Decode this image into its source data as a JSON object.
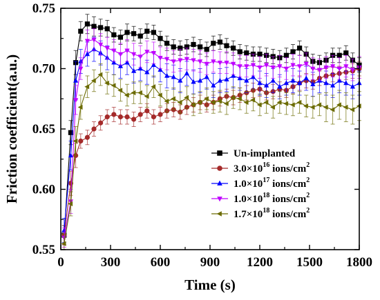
{
  "chart_data": {
    "type": "line",
    "xlabel": "Time (s)",
    "ylabel": "Friction coefficient(a.u.)",
    "xlim": [
      0,
      1800
    ],
    "ylim": [
      0.55,
      0.75
    ],
    "xticks": [
      0,
      300,
      600,
      900,
      1200,
      1500,
      1800
    ],
    "yticks": [
      0.55,
      0.6,
      0.65,
      0.7,
      0.75
    ],
    "xtick_labels": [
      "0",
      "300",
      "600",
      "900",
      "1200",
      "1500",
      "1800"
    ],
    "ytick_labels": [
      "0.55",
      "0.60",
      "0.65",
      "0.70",
      "0.75"
    ],
    "legend_position": "lower-right",
    "error_bars": true,
    "x": [
      20,
      60,
      90,
      120,
      160,
      200,
      240,
      280,
      320,
      360,
      400,
      440,
      480,
      520,
      560,
      600,
      640,
      680,
      720,
      760,
      800,
      840,
      880,
      920,
      960,
      1000,
      1040,
      1080,
      1120,
      1160,
      1200,
      1240,
      1280,
      1320,
      1360,
      1400,
      1440,
      1480,
      1520,
      1560,
      1600,
      1640,
      1680,
      1720,
      1760,
      1800
    ],
    "series": [
      {
        "name": "Un-implanted",
        "name_parts": {
          "base": "Un-implanted",
          "exp": "",
          "unit": "",
          "unit_exp": ""
        },
        "color": "#000000",
        "marker": "square",
        "values": [
          0.562,
          0.647,
          0.705,
          0.731,
          0.737,
          0.735,
          0.734,
          0.733,
          0.728,
          0.726,
          0.73,
          0.729,
          0.727,
          0.731,
          0.73,
          0.725,
          0.721,
          0.718,
          0.717,
          0.718,
          0.72,
          0.718,
          0.716,
          0.721,
          0.722,
          0.719,
          0.717,
          0.714,
          0.713,
          0.712,
          0.712,
          0.711,
          0.71,
          0.709,
          0.711,
          0.714,
          0.717,
          0.712,
          0.706,
          0.705,
          0.707,
          0.711,
          0.711,
          0.713,
          0.707,
          0.703
        ],
        "errors": [
          0.008,
          0.01,
          0.01,
          0.008,
          0.008,
          0.008,
          0.007,
          0.007,
          0.006,
          0.006,
          0.007,
          0.006,
          0.006,
          0.006,
          0.006,
          0.006,
          0.006,
          0.006,
          0.006,
          0.006,
          0.006,
          0.006,
          0.006,
          0.006,
          0.006,
          0.006,
          0.006,
          0.006,
          0.006,
          0.006,
          0.006,
          0.006,
          0.006,
          0.006,
          0.006,
          0.006,
          0.006,
          0.006,
          0.006,
          0.006,
          0.006,
          0.006,
          0.006,
          0.006,
          0.006,
          0.006
        ]
      },
      {
        "name": "3.0×1016 ions/cm2",
        "name_parts": {
          "base": "3.0×10",
          "exp": "16",
          "unit": " ions/cm",
          "unit_exp": "2"
        },
        "color": "#a52a2a",
        "marker": "circle",
        "values": [
          0.562,
          0.605,
          0.628,
          0.64,
          0.643,
          0.65,
          0.655,
          0.66,
          0.662,
          0.66,
          0.66,
          0.658,
          0.662,
          0.665,
          0.66,
          0.662,
          0.665,
          0.666,
          0.664,
          0.668,
          0.67,
          0.672,
          0.67,
          0.672,
          0.675,
          0.677,
          0.676,
          0.678,
          0.68,
          0.682,
          0.683,
          0.68,
          0.681,
          0.683,
          0.682,
          0.685,
          0.688,
          0.69,
          0.689,
          0.692,
          0.694,
          0.695,
          0.696,
          0.697,
          0.698,
          0.7
        ],
        "errors": [
          0.008,
          0.01,
          0.01,
          0.006,
          0.006,
          0.006,
          0.006,
          0.006,
          0.006,
          0.006,
          0.006,
          0.006,
          0.006,
          0.006,
          0.006,
          0.006,
          0.006,
          0.006,
          0.006,
          0.006,
          0.006,
          0.006,
          0.006,
          0.006,
          0.006,
          0.006,
          0.006,
          0.006,
          0.006,
          0.006,
          0.006,
          0.006,
          0.006,
          0.006,
          0.006,
          0.006,
          0.006,
          0.006,
          0.006,
          0.006,
          0.006,
          0.006,
          0.006,
          0.006,
          0.006,
          0.006
        ]
      },
      {
        "name": "1.0×1017 ions/cm2",
        "name_parts": {
          "base": "1.0×10",
          "exp": "17",
          "unit": " ions/cm",
          "unit_exp": "2"
        },
        "color": "#0000ff",
        "marker": "triangle-up",
        "values": [
          0.566,
          0.628,
          0.69,
          0.706,
          0.712,
          0.716,
          0.713,
          0.709,
          0.705,
          0.702,
          0.705,
          0.698,
          0.7,
          0.697,
          0.703,
          0.699,
          0.694,
          0.693,
          0.69,
          0.696,
          0.689,
          0.69,
          0.693,
          0.686,
          0.69,
          0.691,
          0.694,
          0.692,
          0.69,
          0.693,
          0.688,
          0.686,
          0.69,
          0.685,
          0.688,
          0.69,
          0.688,
          0.692,
          0.687,
          0.69,
          0.688,
          0.686,
          0.69,
          0.688,
          0.685,
          0.688
        ],
        "errors": [
          0.01,
          0.012,
          0.016,
          0.01,
          0.01,
          0.01,
          0.01,
          0.01,
          0.01,
          0.01,
          0.01,
          0.01,
          0.01,
          0.01,
          0.01,
          0.01,
          0.01,
          0.01,
          0.01,
          0.01,
          0.01,
          0.01,
          0.01,
          0.01,
          0.01,
          0.01,
          0.01,
          0.01,
          0.01,
          0.01,
          0.01,
          0.01,
          0.01,
          0.01,
          0.01,
          0.01,
          0.01,
          0.01,
          0.01,
          0.01,
          0.01,
          0.01,
          0.01,
          0.01,
          0.01,
          0.01
        ]
      },
      {
        "name": "1.0×1018 ions/cm2",
        "name_parts": {
          "base": "1.0×10",
          "exp": "18",
          "unit": " ions/cm",
          "unit_exp": "2"
        },
        "color": "#c000ff",
        "marker": "triangle-down",
        "values": [
          0.56,
          0.59,
          0.674,
          0.7,
          0.723,
          0.724,
          0.72,
          0.717,
          0.715,
          0.712,
          0.715,
          0.712,
          0.71,
          0.714,
          0.713,
          0.709,
          0.708,
          0.706,
          0.707,
          0.708,
          0.707,
          0.706,
          0.704,
          0.706,
          0.705,
          0.705,
          0.704,
          0.702,
          0.702,
          0.703,
          0.701,
          0.703,
          0.701,
          0.702,
          0.7,
          0.703,
          0.702,
          0.704,
          0.7,
          0.699,
          0.701,
          0.702,
          0.7,
          0.702,
          0.699,
          0.701
        ],
        "errors": [
          0.008,
          0.01,
          0.012,
          0.009,
          0.009,
          0.009,
          0.009,
          0.009,
          0.009,
          0.009,
          0.009,
          0.009,
          0.009,
          0.009,
          0.009,
          0.009,
          0.009,
          0.009,
          0.009,
          0.009,
          0.009,
          0.009,
          0.009,
          0.009,
          0.009,
          0.009,
          0.009,
          0.009,
          0.009,
          0.009,
          0.009,
          0.009,
          0.009,
          0.009,
          0.009,
          0.009,
          0.009,
          0.009,
          0.009,
          0.009,
          0.009,
          0.009,
          0.009,
          0.009,
          0.009,
          0.009
        ]
      },
      {
        "name": "1.7×1018 ions/cm2",
        "name_parts": {
          "base": "1.7×10",
          "exp": "18",
          "unit": " ions/cm",
          "unit_exp": "2"
        },
        "color": "#6b6b00",
        "marker": "triangle-left",
        "values": [
          0.555,
          0.588,
          0.64,
          0.668,
          0.685,
          0.69,
          0.695,
          0.688,
          0.686,
          0.682,
          0.678,
          0.68,
          0.68,
          0.677,
          0.685,
          0.678,
          0.673,
          0.675,
          0.672,
          0.676,
          0.67,
          0.672,
          0.675,
          0.672,
          0.673,
          0.671,
          0.676,
          0.675,
          0.672,
          0.674,
          0.67,
          0.672,
          0.668,
          0.672,
          0.671,
          0.67,
          0.672,
          0.669,
          0.668,
          0.67,
          0.668,
          0.666,
          0.67,
          0.668,
          0.666,
          0.669
        ],
        "errors": [
          0.008,
          0.01,
          0.012,
          0.01,
          0.009,
          0.009,
          0.009,
          0.009,
          0.009,
          0.009,
          0.009,
          0.009,
          0.009,
          0.009,
          0.009,
          0.009,
          0.009,
          0.009,
          0.009,
          0.009,
          0.009,
          0.009,
          0.009,
          0.009,
          0.009,
          0.009,
          0.009,
          0.009,
          0.009,
          0.009,
          0.009,
          0.009,
          0.009,
          0.009,
          0.009,
          0.009,
          0.009,
          0.009,
          0.009,
          0.009,
          0.012,
          0.012,
          0.012,
          0.012,
          0.012,
          0.012
        ]
      }
    ]
  }
}
